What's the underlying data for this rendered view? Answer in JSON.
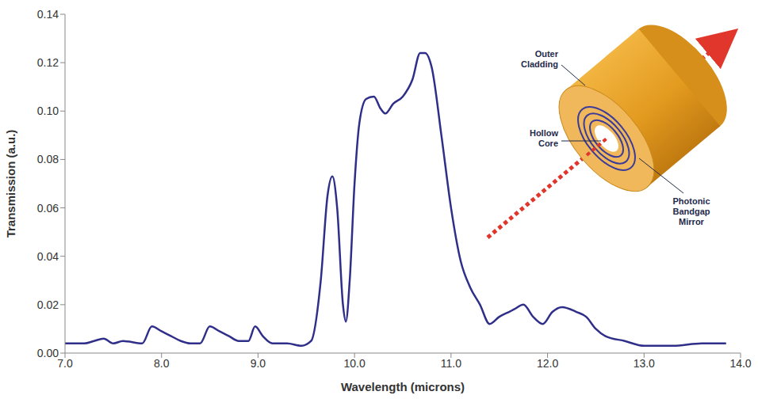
{
  "chart_data": {
    "type": "line",
    "x_label": "Wavelength (microns)",
    "y_label": "Transmission (a.u.)",
    "color": "#2f2f8a",
    "grid": false,
    "annotations": [
      "Outer Cladding",
      "Hollow Core",
      "Photonic Bandgap Mirror"
    ],
    "x": [
      7.0,
      7.2,
      7.3,
      7.4,
      7.5,
      7.6,
      7.8,
      7.9,
      8.0,
      8.1,
      8.2,
      8.3,
      8.4,
      8.5,
      8.6,
      8.7,
      8.8,
      8.9,
      8.97,
      9.05,
      9.15,
      9.3,
      9.45,
      9.55,
      9.65,
      9.72,
      9.77,
      9.82,
      9.88,
      9.91,
      9.95,
      10.0,
      10.05,
      10.12,
      10.2,
      10.27,
      10.32,
      10.4,
      10.5,
      10.6,
      10.68,
      10.73,
      10.8,
      10.9,
      11.0,
      11.1,
      11.2,
      11.3,
      11.4,
      11.5,
      11.6,
      11.65,
      11.75,
      11.85,
      11.95,
      12.05,
      12.15,
      12.3,
      12.4,
      12.5,
      12.6,
      12.8,
      13.0,
      13.3,
      13.6,
      13.85
    ],
    "values": [
      0.004,
      0.004,
      0.005,
      0.006,
      0.004,
      0.005,
      0.004,
      0.011,
      0.009,
      0.007,
      0.005,
      0.004,
      0.004,
      0.011,
      0.009,
      0.007,
      0.005,
      0.005,
      0.011,
      0.007,
      0.004,
      0.004,
      0.003,
      0.005,
      0.03,
      0.065,
      0.073,
      0.06,
      0.02,
      0.013,
      0.03,
      0.07,
      0.095,
      0.105,
      0.106,
      0.101,
      0.099,
      0.103,
      0.106,
      0.113,
      0.124,
      0.124,
      0.118,
      0.09,
      0.06,
      0.038,
      0.027,
      0.02,
      0.012,
      0.015,
      0.017,
      0.018,
      0.02,
      0.015,
      0.012,
      0.017,
      0.019,
      0.017,
      0.015,
      0.01,
      0.007,
      0.005,
      0.003,
      0.003,
      0.004,
      0.004
    ],
    "xlim": [
      7,
      14
    ],
    "xticks": [
      {
        "value": 7,
        "label": "7.0"
      },
      {
        "value": 8,
        "label": "8.0"
      },
      {
        "value": 9,
        "label": "9.0"
      },
      {
        "value": 10,
        "label": "10.0"
      },
      {
        "value": 11,
        "label": "11.0"
      },
      {
        "value": 12,
        "label": "12.0"
      },
      {
        "value": 13,
        "label": "13.0"
      },
      {
        "value": 14,
        "label": "14.0"
      }
    ],
    "ylim": [
      0,
      0.14
    ],
    "yticks": [
      {
        "value": 0,
        "label": "0.00"
      },
      {
        "value": 0.02,
        "label": "0.02"
      },
      {
        "value": 0.04,
        "label": "0.04"
      },
      {
        "value": 0.06,
        "label": "0.06"
      },
      {
        "value": 0.08,
        "label": "0.08"
      },
      {
        "value": 0.1,
        "label": "0.10"
      },
      {
        "value": 0.12,
        "label": "0.12"
      },
      {
        "value": 0.14,
        "label": "0.14"
      }
    ]
  }
}
